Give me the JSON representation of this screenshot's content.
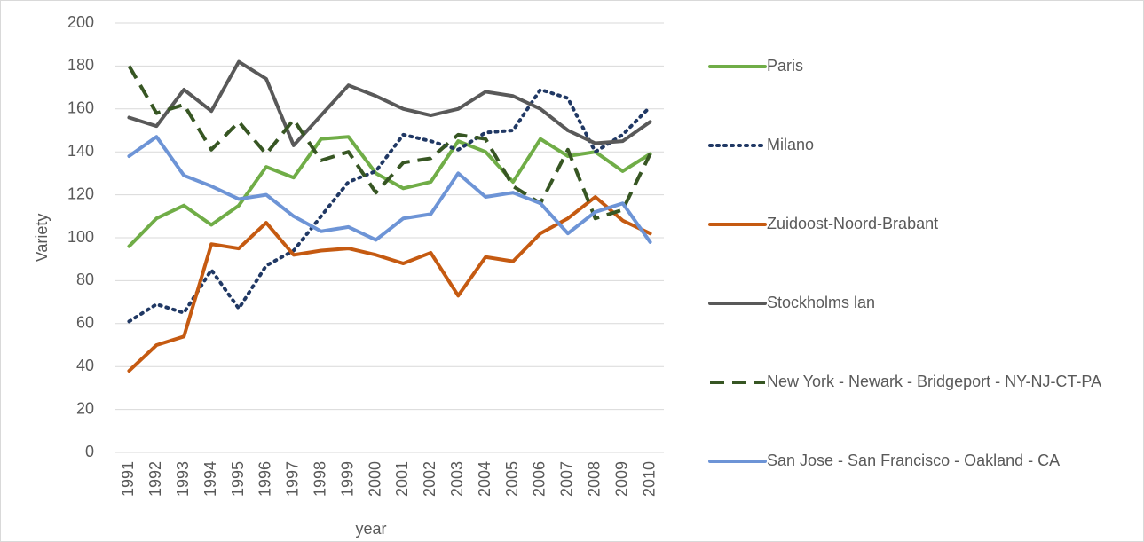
{
  "chart_data": {
    "type": "line",
    "x_label": "year",
    "y_label": "Variety",
    "categories": [
      "1991",
      "1992",
      "1993",
      "1994",
      "1995",
      "1996",
      "1997",
      "1998",
      "1999",
      "2000",
      "2001",
      "2002",
      "2003",
      "2004",
      "2005",
      "2006",
      "2007",
      "2008",
      "2009",
      "2010"
    ],
    "ylim": [
      0,
      200
    ],
    "yticks": [
      0,
      20,
      40,
      60,
      80,
      100,
      120,
      140,
      160,
      180,
      200
    ],
    "grid": true,
    "legend": "right",
    "series": [
      {
        "name": "Paris",
        "color": "#70ad47",
        "style": "solid",
        "values": [
          96,
          109,
          115,
          106,
          115,
          133,
          128,
          146,
          147,
          130,
          123,
          126,
          145,
          140,
          126,
          146,
          138,
          140,
          131,
          139
        ]
      },
      {
        "name": "Milano",
        "color": "#203864",
        "style": "dotted",
        "values": [
          61,
          69,
          65,
          85,
          67,
          87,
          94,
          110,
          126,
          131,
          148,
          145,
          141,
          149,
          150,
          169,
          165,
          140,
          148,
          161
        ]
      },
      {
        "name": "Zuidoost-Noord-Brabant",
        "color": "#c55a11",
        "style": "solid",
        "values": [
          38,
          50,
          54,
          97,
          95,
          107,
          92,
          94,
          95,
          92,
          88,
          93,
          73,
          91,
          89,
          102,
          109,
          119,
          108,
          102
        ]
      },
      {
        "name": "Stockholms lan",
        "color": "#595959",
        "style": "solid",
        "values": [
          156,
          152,
          169,
          159,
          182,
          174,
          143,
          157,
          171,
          166,
          160,
          157,
          160,
          168,
          166,
          160,
          150,
          144,
          145,
          154
        ]
      },
      {
        "name": "New York - Newark - Bridgeport - NY-NJ-CT-PA",
        "color": "#375623",
        "style": "dashed",
        "values": [
          180,
          158,
          162,
          141,
          154,
          139,
          155,
          136,
          140,
          121,
          135,
          137,
          148,
          146,
          124,
          116,
          141,
          109,
          113,
          139
        ]
      },
      {
        "name": "San Jose - San Francisco - Oakland - CA",
        "color": "#6d94d6",
        "style": "solid",
        "values": [
          138,
          147,
          129,
          124,
          118,
          120,
          110,
          103,
          105,
          99,
          109,
          111,
          130,
          119,
          121,
          116,
          102,
          112,
          116,
          98
        ]
      }
    ]
  }
}
